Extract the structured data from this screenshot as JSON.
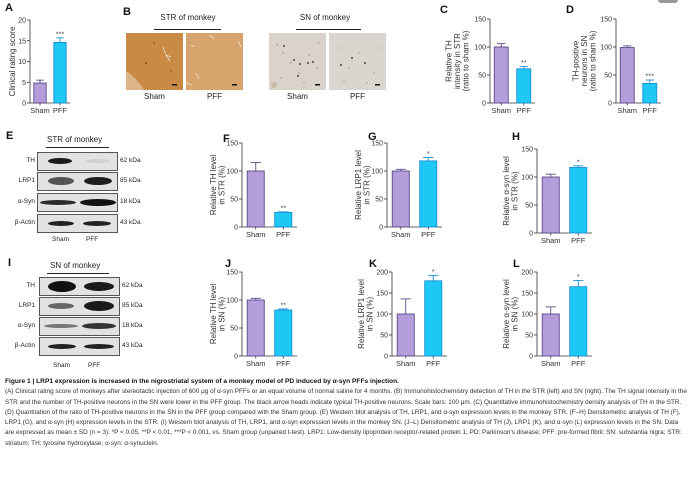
{
  "figure": {
    "panels": {
      "A": "A",
      "B": "B",
      "C": "C",
      "D": "D",
      "E": "E",
      "F": "F",
      "G": "G",
      "H": "H",
      "I": "I",
      "J": "J",
      "K": "K",
      "L": "L"
    },
    "colors": {
      "sham": "#b39ddb",
      "sham_edge": "#5e4a8a",
      "pff": "#1ec8f5",
      "pff_edge": "#1a8fd6"
    }
  },
  "ihc": {
    "str_title": "STR of monkey",
    "sn_title": "SN of monkey",
    "captions": [
      "Sham",
      "PFF",
      "Sham",
      "PFF"
    ]
  },
  "western_E": {
    "title": "STR of monkey",
    "rows": [
      {
        "label": "TH",
        "kda": "62 kDa"
      },
      {
        "label": "LRP1",
        "kda": "85 kDa"
      },
      {
        "label": "α-Syn",
        "kda": "18 kDa"
      },
      {
        "label": "β-Actin",
        "kda": "43 kDa"
      }
    ],
    "lanes": [
      "Sham",
      "PFF"
    ]
  },
  "western_I": {
    "title": "SN of monkey",
    "rows": [
      {
        "label": "TH",
        "kda": "62 kDa"
      },
      {
        "label": "LRP1",
        "kda": "85 kDa"
      },
      {
        "label": "α-Syn",
        "kda": "18 kDa"
      },
      {
        "label": "β-Actin",
        "kda": "43 kDa"
      }
    ],
    "lanes": [
      "Sham",
      "PFF"
    ]
  },
  "chart_data": [
    {
      "id": "A",
      "type": "bar",
      "categories": [
        "Sham",
        "PFF"
      ],
      "values": [
        4.8,
        14.6
      ],
      "errors": [
        0.7,
        1.1
      ],
      "significance": [
        "",
        "***"
      ],
      "ylabel": [
        "Clinical rating score"
      ],
      "ylim": [
        0,
        20
      ],
      "ticks": [
        0,
        5,
        10,
        15,
        20
      ]
    },
    {
      "id": "C",
      "type": "bar",
      "categories": [
        "Sham",
        "PFF"
      ],
      "values": [
        100,
        61
      ],
      "errors": [
        6,
        4
      ],
      "significance": [
        "",
        "**"
      ],
      "ylabel": [
        "Relative TH",
        "intensity in STR",
        "(ratio to sham %)"
      ],
      "ylim": [
        0,
        150
      ],
      "ticks": [
        0,
        50,
        100,
        150
      ]
    },
    {
      "id": "D",
      "type": "bar",
      "categories": [
        "Sham",
        "PFF"
      ],
      "values": [
        99,
        35
      ],
      "errors": [
        3,
        6
      ],
      "significance": [
        "",
        "***"
      ],
      "ylabel": [
        "TH-positive",
        "neurons in SN",
        "(ratio to sham %)"
      ],
      "ylim": [
        0,
        150
      ],
      "ticks": [
        0,
        50,
        100,
        150
      ]
    },
    {
      "id": "F",
      "type": "bar",
      "categories": [
        "Sham",
        "PFF"
      ],
      "values": [
        100,
        26
      ],
      "errors": [
        15,
        1
      ],
      "significance": [
        "",
        "**"
      ],
      "ylabel": [
        "Relative TH level",
        "in STR (%)"
      ],
      "ylim": [
        0,
        150
      ],
      "ticks": [
        0,
        50,
        100,
        150
      ]
    },
    {
      "id": "G",
      "type": "bar",
      "categories": [
        "Sham",
        "PFF"
      ],
      "values": [
        100,
        118
      ],
      "errors": [
        3,
        6
      ],
      "significance": [
        "",
        "*"
      ],
      "ylabel": [
        "Relative LRP1 level",
        "in STR (%)"
      ],
      "ylim": [
        0,
        150
      ],
      "ticks": [
        0,
        50,
        100,
        150
      ]
    },
    {
      "id": "H",
      "type": "bar",
      "categories": [
        "Sham",
        "PFF"
      ],
      "values": [
        100,
        117
      ],
      "errors": [
        5,
        3
      ],
      "significance": [
        "",
        "*"
      ],
      "ylabel": [
        "Relative α-syn level",
        "in STR (%)"
      ],
      "ylim": [
        0,
        150
      ],
      "ticks": [
        0,
        50,
        100,
        150
      ]
    },
    {
      "id": "J",
      "type": "bar",
      "categories": [
        "Sham",
        "PFF"
      ],
      "values": [
        100,
        82
      ],
      "errors": [
        3,
        2
      ],
      "significance": [
        "",
        "**"
      ],
      "ylabel": [
        "Relative TH level",
        "in SN (%)"
      ],
      "ylim": [
        0,
        150
      ],
      "ticks": [
        0,
        50,
        100,
        150
      ]
    },
    {
      "id": "K",
      "type": "bar",
      "categories": [
        "Sham",
        "PFF"
      ],
      "values": [
        100,
        179
      ],
      "errors": [
        36,
        13
      ],
      "significance": [
        "",
        "*"
      ],
      "ylabel": [
        "Relative LRP1 level",
        "in SN (%)"
      ],
      "ylim": [
        0,
        200
      ],
      "ticks": [
        0,
        50,
        100,
        150,
        200
      ]
    },
    {
      "id": "L",
      "type": "bar",
      "categories": [
        "Sham",
        "PFF"
      ],
      "values": [
        100,
        165
      ],
      "errors": [
        17,
        15
      ],
      "significance": [
        "",
        "*"
      ],
      "ylabel": [
        "Relative α-syn level",
        "in SN (%)"
      ],
      "ylim": [
        0,
        200
      ],
      "ticks": [
        0,
        50,
        100,
        150,
        200
      ]
    }
  ],
  "caption": {
    "title": "Figure 1 | LRP1 expression is increased in the nigrostriatal system of a monkey model of PD induced by α-syn PFFs injection.",
    "body": "(A) Clinical rating score of monkeys after stereotactic injection of 600 μg of α-syn PFFs or an equal volume of normal saline for 4 months. (B) Immunohistochemistry detection of TH in the STR (left) and SN (right). The TH signal intensity in the STR and the number of TH-positive neurons in the SN were lower in the PFF group. The black arrow heads indicate typical TH-positive neurons. Scale bars: 100 μm. (C) Quantitative immunohistochemistry density analysis of TH in the STR. (D) Quantitation of the ratio of TH-positive neurons in the SN in the PFF group compared with the Sham group. (E) Western blot analysis of TH, LRP1, and α-syn expression levels in the monkey STR. (F–H) Densitometric analysis of TH (F), LRP1 (G), and α-syn (H) expression levels in the STR. (I) Western blot analysis of TH, LRP1, and α-syn expression levels in the monkey SN. (J–L) Densitometric analysis of TH (J), LRP1 (K), and α-syn (L) expression levels in the SN. Data are expressed as mean ± SD (n = 3). *P < 0.05, **P < 0.01, ***P < 0.001, vs. Sham group (unpaired t-test). LRP1: Low-density lipoprotein receptor-related protein 1; PD: Parkinson's disease; PFF: pre-formed fibril; SN: substantia nigra; STR: striatum; TH: tyrosine hydroxylase; α-syn: α-synuclein."
  }
}
